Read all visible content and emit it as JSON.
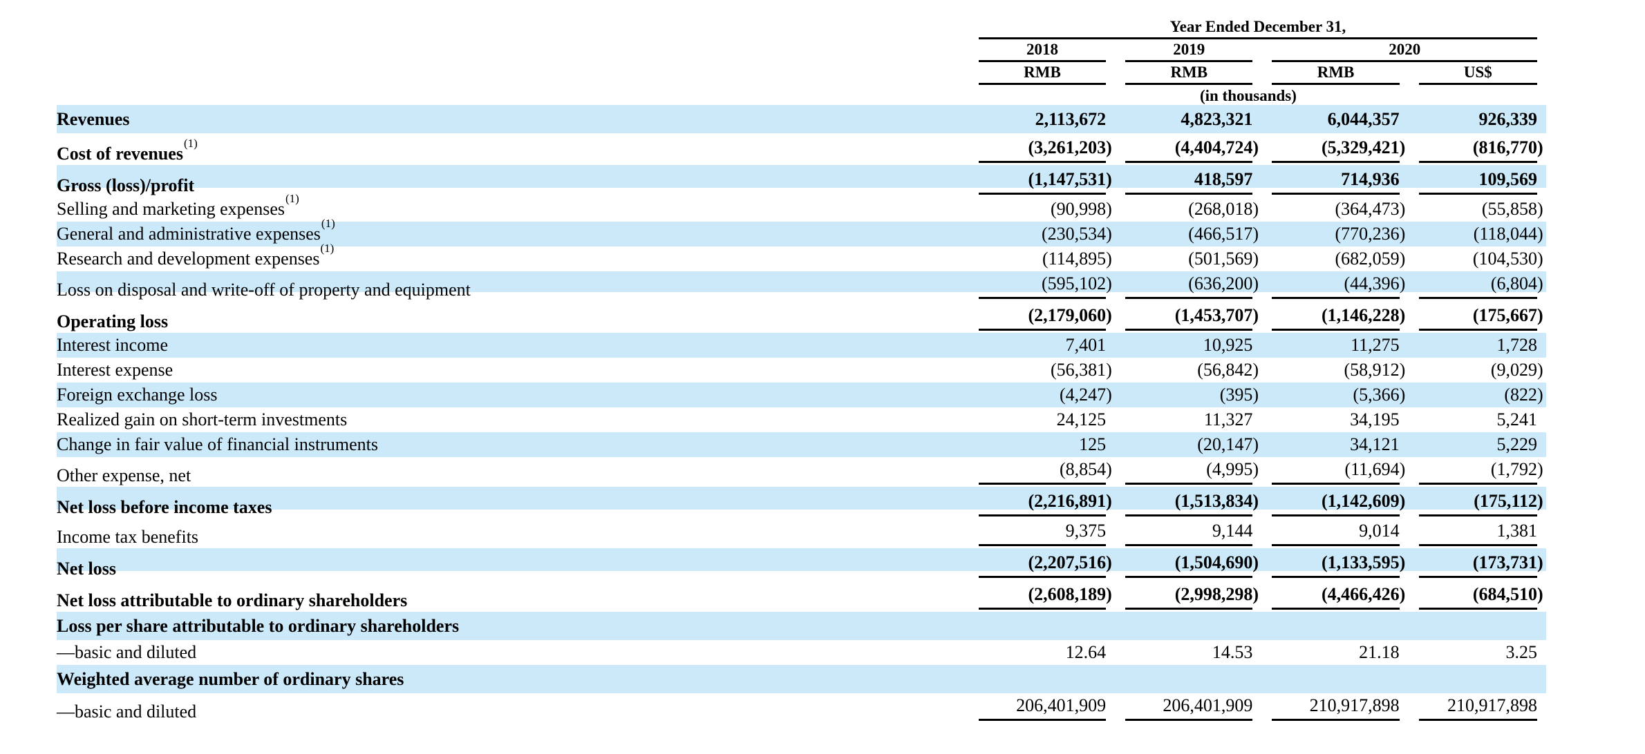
{
  "table": {
    "header": {
      "year_ended_label": "Year Ended December 31,",
      "years": [
        "2018",
        "2019",
        "2020"
      ],
      "currencies": [
        "RMB",
        "RMB",
        "RMB",
        "US$"
      ],
      "units_note": "(in thousands)"
    },
    "band_color": "#cce9fa",
    "rule_color": "#000000",
    "rows": [
      {
        "label": "Revenues",
        "sup": "",
        "bold": true,
        "rule_below": false,
        "values": [
          "2,113,672",
          "4,823,321",
          "6,044,357",
          "926,339"
        ]
      },
      {
        "label": "Cost of revenues",
        "sup": "(1)",
        "bold": true,
        "rule_below": true,
        "values": [
          "(3,261,203)",
          "(4,404,724)",
          "(5,329,421)",
          "(816,770)"
        ]
      },
      {
        "label": "Gross (loss)/profit",
        "sup": "",
        "bold": true,
        "rule_below": true,
        "values": [
          "(1,147,531)",
          "418,597",
          "714,936",
          "109,569"
        ]
      },
      {
        "label": "Selling and marketing expenses",
        "sup": "(1)",
        "bold": false,
        "rule_below": false,
        "values": [
          "(90,998)",
          "(268,018)",
          "(364,473)",
          "(55,858)"
        ]
      },
      {
        "label": "General and administrative expenses",
        "sup": "(1)",
        "bold": false,
        "rule_below": false,
        "values": [
          "(230,534)",
          "(466,517)",
          "(770,236)",
          "(118,044)"
        ]
      },
      {
        "label": "Research and development expenses",
        "sup": "(1)",
        "bold": false,
        "rule_below": false,
        "values": [
          "(114,895)",
          "(501,569)",
          "(682,059)",
          "(104,530)"
        ]
      },
      {
        "label": "Loss on disposal and write-off of property and equipment",
        "sup": "",
        "bold": false,
        "rule_below": true,
        "values": [
          "(595,102)",
          "(636,200)",
          "(44,396)",
          "(6,804)"
        ]
      },
      {
        "label": "Operating loss",
        "sup": "",
        "bold": true,
        "rule_below": true,
        "values": [
          "(2,179,060)",
          "(1,453,707)",
          "(1,146,228)",
          "(175,667)"
        ]
      },
      {
        "label": "Interest income",
        "sup": "",
        "bold": false,
        "rule_below": false,
        "values": [
          "7,401",
          "10,925",
          "11,275",
          "1,728"
        ]
      },
      {
        "label": "Interest expense",
        "sup": "",
        "bold": false,
        "rule_below": false,
        "values": [
          "(56,381)",
          "(56,842)",
          "(58,912)",
          "(9,029)"
        ]
      },
      {
        "label": "Foreign exchange loss",
        "sup": "",
        "bold": false,
        "rule_below": false,
        "values": [
          "(4,247)",
          "(395)",
          "(5,366)",
          "(822)"
        ]
      },
      {
        "label": "Realized gain on short-term investments",
        "sup": "",
        "bold": false,
        "rule_below": false,
        "values": [
          "24,125",
          "11,327",
          "34,195",
          "5,241"
        ]
      },
      {
        "label": "Change in fair value of financial instruments",
        "sup": "",
        "bold": false,
        "rule_below": false,
        "values": [
          "125",
          "(20,147)",
          "34,121",
          "5,229"
        ]
      },
      {
        "label": "Other expense, net",
        "sup": "",
        "bold": false,
        "rule_below": true,
        "values": [
          "(8,854)",
          "(4,995)",
          "(11,694)",
          "(1,792)"
        ]
      },
      {
        "label": "Net loss before income taxes",
        "sup": "",
        "bold": true,
        "rule_below": true,
        "values": [
          "(2,216,891)",
          "(1,513,834)",
          "(1,142,609)",
          "(175,112)"
        ]
      },
      {
        "label": "Income tax benefits",
        "sup": "",
        "bold": false,
        "rule_below": true,
        "values": [
          "9,375",
          "9,144",
          "9,014",
          "1,381"
        ]
      },
      {
        "label": "Net loss",
        "sup": "",
        "bold": true,
        "rule_below": true,
        "values": [
          "(2,207,516)",
          "(1,504,690)",
          "(1,133,595)",
          "(173,731)"
        ]
      },
      {
        "label": "Net loss attributable to ordinary shareholders",
        "sup": "",
        "bold": true,
        "rule_below": true,
        "values": [
          "(2,608,189)",
          "(2,998,298)",
          "(4,466,426)",
          "(684,510)"
        ]
      },
      {
        "label": "Loss per share attributable to ordinary shareholders",
        "sup": "",
        "bold": true,
        "rule_below": false,
        "values": [
          "",
          "",
          "",
          ""
        ]
      },
      {
        "label": "—basic and diluted",
        "sup": "",
        "bold": false,
        "rule_below": false,
        "values": [
          "12.64",
          "14.53",
          "21.18",
          "3.25"
        ]
      },
      {
        "label": "Weighted average number of ordinary shares",
        "sup": "",
        "bold": true,
        "rule_below": false,
        "values": [
          "",
          "",
          "",
          ""
        ]
      },
      {
        "label": "—basic and diluted",
        "sup": "",
        "bold": false,
        "rule_below": true,
        "values": [
          "206,401,909",
          "206,401,909",
          "210,917,898",
          "210,917,898"
        ]
      }
    ]
  }
}
